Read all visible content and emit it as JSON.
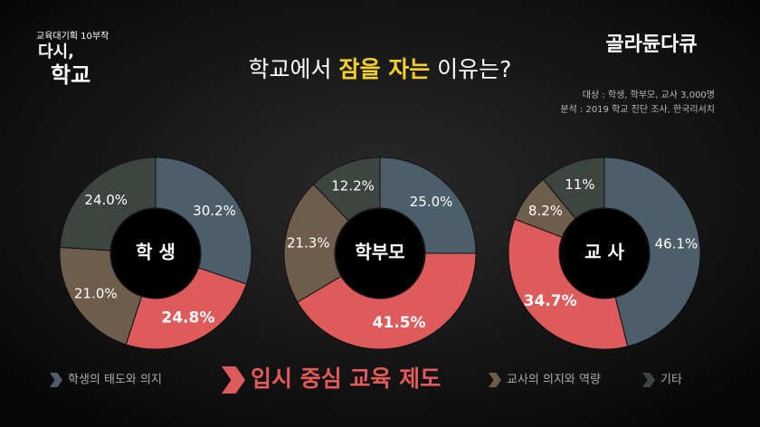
{
  "header": {
    "program": "교육대기획 10부작",
    "logo": [
      "다시,",
      "학교"
    ],
    "brand": "골라듄다큐"
  },
  "title": [
    "학교에서 ",
    "잠을 자는",
    " 이유는?"
  ],
  "source": [
    "대상 : 학생, 학부모, 교사 3,000명",
    "분석 : 2019 학교 진단 조사, 한국리서치"
  ],
  "chart_data": [
    {
      "type": "pie",
      "center_label": "학 생",
      "categories": [
        "학생의 태도와 의지",
        "입시 중심 교육 제도",
        "교사의 의지와 역량",
        "기타"
      ],
      "colors": [
        "#4b5e69",
        "#de5b5b",
        "#6e5d4b",
        "#3e4440"
      ],
      "values": [
        30.2,
        24.8,
        21.0,
        24.0
      ],
      "value_labels": [
        "30.2%",
        "24.8%",
        "21.0%",
        "24.0%"
      ]
    },
    {
      "type": "pie",
      "center_label": "학부모",
      "categories": [
        "학생의 태도와 의지",
        "입시 중심 교육 제도",
        "교사의 의지와 역량",
        "기타"
      ],
      "colors": [
        "#4b5e69",
        "#de5b5b",
        "#6e5d4b",
        "#3e4440"
      ],
      "values": [
        25.0,
        41.5,
        21.3,
        12.2
      ],
      "value_labels": [
        "25.0%",
        "41.5%",
        "21.3%",
        "12.2%"
      ]
    },
    {
      "type": "pie",
      "center_label": "교 사",
      "categories": [
        "학생의 태도와 의지",
        "입시 중심 교육 제도",
        "교사의 의지와 역량",
        "기타"
      ],
      "colors": [
        "#4b5e69",
        "#de5b5b",
        "#6e5d4b",
        "#3e4440"
      ],
      "values": [
        46.1,
        34.7,
        8.2,
        11
      ],
      "value_labels": [
        "46.1%",
        "34.7%",
        "8.2%",
        "11%"
      ]
    }
  ]
}
